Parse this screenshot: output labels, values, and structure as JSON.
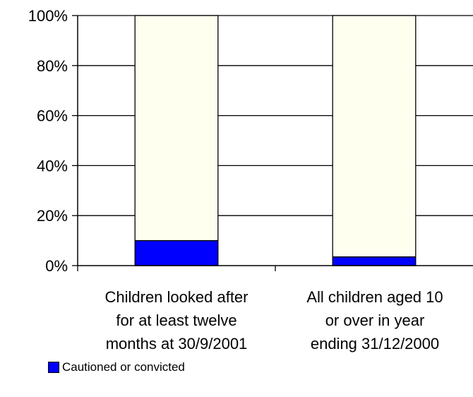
{
  "chart_data": {
    "type": "bar",
    "stacked": true,
    "title": "",
    "xlabel": "",
    "ylabel": "",
    "ylim": [
      0,
      100
    ],
    "y_ticks": [
      "0%",
      "20%",
      "40%",
      "60%",
      "80%",
      "100%"
    ],
    "y_tick_values": [
      0,
      20,
      40,
      60,
      80,
      100
    ],
    "categories": [
      [
        "Children looked after",
        "for at least twelve",
        "months at 30/9/2001"
      ],
      [
        "All children aged 10",
        "or over in year",
        "ending 31/12/2000"
      ]
    ],
    "series": [
      {
        "name": "Cautioned or convicted",
        "values": [
          10,
          3.5
        ],
        "color": "#0000ff"
      },
      {
        "values": [
          90,
          96.5
        ],
        "color": "#fffff0"
      }
    ],
    "grid": true,
    "legend_position": "bottom-left"
  }
}
